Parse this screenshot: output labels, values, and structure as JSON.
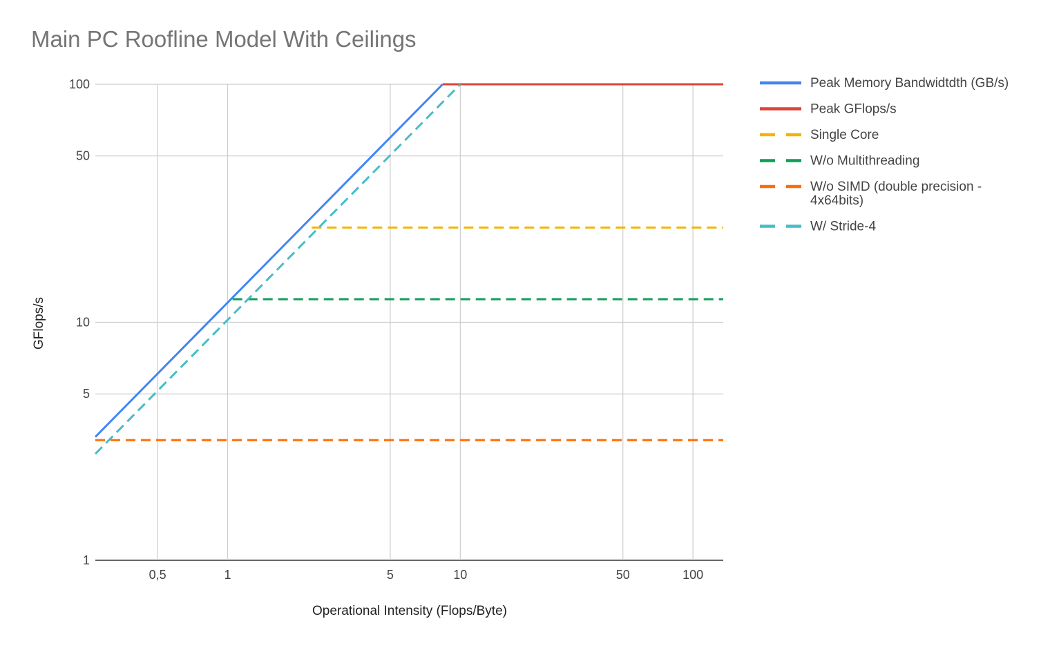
{
  "chart_data": {
    "type": "line",
    "title": "Main PC Roofline Model With Ceilings",
    "xlabel": "Operational Intensity (Flops/Byte)",
    "ylabel": "GFlops/s",
    "xscale": "log",
    "yscale": "log",
    "xlim": [
      0.27,
      135
    ],
    "ylim": [
      1,
      100
    ],
    "x_ticks": [
      {
        "value": 0.5,
        "label": "0,5"
      },
      {
        "value": 1,
        "label": "1"
      },
      {
        "value": 5,
        "label": "5"
      },
      {
        "value": 10,
        "label": "10"
      },
      {
        "value": 50,
        "label": "50"
      },
      {
        "value": 100,
        "label": "100"
      }
    ],
    "y_ticks": [
      {
        "value": 1,
        "label": "1"
      },
      {
        "value": 5,
        "label": "5"
      },
      {
        "value": 10,
        "label": "10"
      },
      {
        "value": 50,
        "label": "50"
      },
      {
        "value": 100,
        "label": "100"
      }
    ],
    "grid": true,
    "legend_position": "right",
    "series": [
      {
        "name": "Peak Memory Bandwidtdth (GB/s)",
        "color": "#4285f4",
        "dashed": false,
        "x": [
          0.27,
          8.4
        ],
        "y": [
          3.3,
          100
        ]
      },
      {
        "name": "Peak GFlops/s",
        "color": "#db4437",
        "dashed": false,
        "x": [
          8.4,
          135
        ],
        "y": [
          100,
          100
        ]
      },
      {
        "name": "Single Core",
        "color": "#f4b400",
        "dashed": true,
        "x": [
          2.3,
          135
        ],
        "y": [
          25,
          25
        ]
      },
      {
        "name": "W/o Multithreading",
        "color": "#0f9d58",
        "dashed": true,
        "x": [
          1.05,
          135
        ],
        "y": [
          12.5,
          12.5
        ]
      },
      {
        "name": "W/o SIMD (double precision - 4x64bits)",
        "name_lines": [
          "W/o SIMD (double precision -",
          "4x64bits)"
        ],
        "color": "#ff6d01",
        "dashed": true,
        "x": [
          0.27,
          135
        ],
        "y": [
          3.2,
          3.2
        ]
      },
      {
        "name": "W/ Stride-4",
        "color": "#46bdc6",
        "dashed": true,
        "x": [
          0.27,
          10
        ],
        "y": [
          2.8,
          100
        ]
      }
    ]
  }
}
